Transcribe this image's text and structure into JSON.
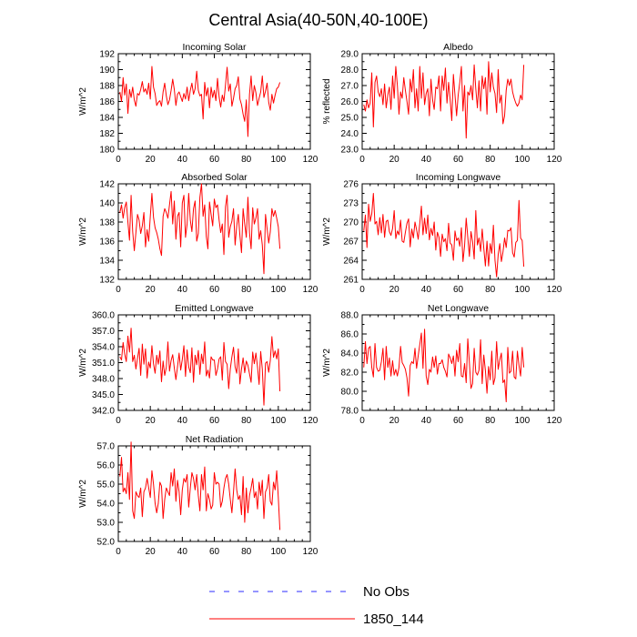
{
  "figure": {
    "title": "Central Asia(40-50N,40-100E)"
  },
  "colors": {
    "series": "#ff0000",
    "obs": "#2b2bff",
    "axis": "#000000"
  },
  "legend": [
    {
      "label": "No Obs",
      "style": "dashed",
      "color": "#2b2bff"
    },
    {
      "label": "1850_144",
      "style": "solid",
      "color": "#ff0000"
    }
  ],
  "chart_data": [
    {
      "type": "line",
      "title": "Incoming Solar",
      "xlabel": "",
      "ylabel": "W/m^2",
      "xlim": [
        0,
        120
      ],
      "ylim": [
        180,
        192
      ],
      "xticks": [
        "0",
        "20",
        "40",
        "60",
        "80",
        "100",
        "120"
      ],
      "yticks": [
        "180",
        "182",
        "184",
        "186",
        "188",
        "190",
        "192"
      ],
      "series": [
        {
          "name": "1850_144",
          "values": [
            187.2,
            186.0,
            189.0,
            186.8,
            188.2,
            184.5,
            187.5,
            186.5,
            187.8,
            186.2,
            185.4,
            187.0,
            186.8,
            187.5,
            188.5,
            187.2,
            187.6,
            186.9,
            188.3,
            186.3,
            190.4,
            187.8,
            187.0,
            185.5,
            185.9,
            186.1,
            185.4,
            187.2,
            188.3,
            186.7,
            185.6,
            186.2,
            187.4,
            188.8,
            187.5,
            185.5,
            186.9,
            187.2,
            186.6,
            186.0,
            187.0,
            186.3,
            187.8,
            186.1,
            187.4,
            188.3,
            186.9,
            187.6,
            189.8,
            187.4,
            186.7,
            186.9,
            183.8,
            188.4,
            186.7,
            187.7,
            185.2,
            187.8,
            186.5,
            187.4,
            186.1,
            188.9,
            186.6,
            185.3,
            186.8,
            186.0,
            188.1,
            190.3,
            187.3,
            188.2,
            185.4,
            186.4,
            187.6,
            188.0,
            189.1,
            186.3,
            185.6,
            184.4,
            183.5,
            186.2,
            181.6,
            186.9,
            189.2,
            186.1,
            188.0,
            187.1,
            185.5,
            186.4,
            187.2,
            189.2,
            186.5,
            187.3,
            188.3,
            185.9,
            184.9,
            186.9,
            185.8,
            186.8,
            187.6,
            187.8,
            188.4
          ]
        }
      ]
    },
    {
      "type": "line",
      "title": "Albedo",
      "xlabel": "",
      "ylabel": "% reflected",
      "xlim": [
        0,
        120
      ],
      "ylim": [
        23,
        29
      ],
      "xticks": [
        "0",
        "20",
        "40",
        "60",
        "80",
        "100",
        "120"
      ],
      "yticks": [
        "23.0",
        "24.0",
        "25.0",
        "26.0",
        "27.0",
        "28.0",
        "29.0"
      ],
      "series": [
        {
          "name": "1850_144",
          "values": [
            25.8,
            25.4,
            26.1,
            25.6,
            25.9,
            27.8,
            24.4,
            27.2,
            27.6,
            26.6,
            26.3,
            26.8,
            25.8,
            27.1,
            25.6,
            26.4,
            26.9,
            25.5,
            27.6,
            26.2,
            28.2,
            27.0,
            25.2,
            26.6,
            26.2,
            27.5,
            26.7,
            26.0,
            25.2,
            27.4,
            26.6,
            28.0,
            25.6,
            26.8,
            25.4,
            28.2,
            26.2,
            27.8,
            25.8,
            26.5,
            26.8,
            25.1,
            27.4,
            26.1,
            25.5,
            26.9,
            26.8,
            27.6,
            25.4,
            27.6,
            26.7,
            28.1,
            25.9,
            27.2,
            26.1,
            24.8,
            27.7,
            26.4,
            25.1,
            26.4,
            27.2,
            28.2,
            25.4,
            27.0,
            23.7,
            26.6,
            26.4,
            27.0,
            26.1,
            28.3,
            26.8,
            25.6,
            27.3,
            25.4,
            27.6,
            26.8,
            27.5,
            25.2,
            28.5,
            26.6,
            27.8,
            26.9,
            26.5,
            25.3,
            28.0,
            25.9,
            26.4,
            24.6,
            25.1,
            26.7,
            27.4,
            27.0,
            27.4,
            26.6,
            26.2,
            25.9,
            25.7,
            25.9,
            26.4,
            26.1,
            28.3
          ]
        }
      ]
    },
    {
      "type": "line",
      "title": "Absorbed Solar",
      "xlabel": "",
      "ylabel": "W/m^2",
      "xlim": [
        0,
        120
      ],
      "ylim": [
        132,
        142
      ],
      "xticks": [
        "0",
        "20",
        "40",
        "60",
        "80",
        "100",
        "120"
      ],
      "yticks": [
        "132",
        "134",
        "136",
        "138",
        "140",
        "142"
      ],
      "series": [
        {
          "name": "1850_144",
          "values": [
            139.0,
            139.8,
            138.4,
            139.5,
            140.1,
            138.0,
            136.1,
            140.8,
            137.0,
            135.0,
            136.9,
            138.8,
            138.2,
            136.8,
            137.6,
            139.0,
            135.4,
            137.2,
            136.0,
            138.6,
            141.0,
            138.5,
            137.4,
            136.9,
            136.2,
            135.2,
            134.5,
            138.6,
            139.4,
            139.0,
            138.4,
            139.8,
            141.2,
            137.8,
            140.2,
            136.2,
            138.6,
            139.0,
            135.4,
            140.0,
            140.8,
            136.4,
            137.8,
            141.0,
            138.2,
            137.0,
            139.4,
            140.2,
            136.0,
            136.8,
            140.6,
            142.0,
            138.6,
            139.8,
            136.5,
            135.2,
            140.1,
            138.8,
            137.6,
            140.4,
            139.5,
            139.8,
            138.2,
            136.9,
            137.8,
            134.6,
            139.6,
            140.8,
            136.4,
            137.5,
            138.1,
            139.4,
            135.6,
            137.6,
            138.8,
            136.6,
            134.8,
            139.4,
            137.8,
            136.4,
            140.6,
            136.9,
            135.2,
            139.5,
            137.8,
            138.4,
            139.4,
            136.2,
            137.1,
            135.6,
            132.6,
            138.8,
            137.3,
            135.8,
            137.0,
            139.4,
            138.6,
            139.2,
            138.4,
            137.5,
            135.2
          ]
        }
      ]
    },
    {
      "type": "line",
      "title": "Incoming Longwave",
      "xlabel": "",
      "ylabel": "W/m^2",
      "xlim": [
        0,
        120
      ],
      "ylim": [
        261,
        276
      ],
      "xticks": [
        "0",
        "20",
        "40",
        "60",
        "80",
        "100",
        "120"
      ],
      "yticks": [
        "261",
        "264",
        "267",
        "270",
        "273",
        "276"
      ],
      "series": [
        {
          "name": "1850_144",
          "values": [
            268.6,
            271.1,
            266.0,
            272.8,
            270.1,
            271.3,
            274.5,
            269.7,
            270.1,
            268.0,
            270.7,
            268.3,
            271.2,
            267.6,
            270.1,
            270.3,
            268.5,
            267.9,
            269.0,
            271.8,
            267.4,
            268.6,
            268.0,
            270.3,
            267.0,
            266.8,
            268.4,
            269.8,
            270.5,
            266.1,
            268.9,
            267.5,
            270.0,
            268.8,
            267.3,
            269.8,
            272.5,
            268.0,
            270.6,
            268.2,
            271.1,
            267.2,
            269.0,
            267.9,
            270.0,
            265.6,
            268.4,
            267.6,
            264.6,
            268.1,
            266.9,
            267.4,
            265.5,
            269.8,
            266.7,
            266.4,
            264.0,
            268.6,
            267.1,
            267.5,
            266.2,
            269.1,
            263.8,
            266.3,
            270.6,
            267.6,
            264.6,
            268.5,
            266.9,
            264.2,
            271.8,
            266.4,
            267.5,
            265.4,
            268.9,
            265.9,
            263.1,
            267.0,
            263.1,
            266.6,
            265.1,
            269.5,
            264.0,
            261.4,
            264.9,
            266.6,
            263.8,
            265.3,
            267.5,
            266.0,
            268.7,
            268.6,
            269.1,
            265.2,
            264.5,
            266.8,
            267.1,
            273.4,
            267.5,
            267.1,
            263.0
          ]
        }
      ]
    },
    {
      "type": "line",
      "title": "Emitted Longwave",
      "xlabel": "",
      "ylabel": "W/m^2",
      "xlim": [
        0,
        120
      ],
      "ylim": [
        342,
        360
      ],
      "xticks": [
        "0",
        "20",
        "40",
        "60",
        "80",
        "100",
        "120"
      ],
      "yticks": [
        "342.0",
        "345.0",
        "348.0",
        "351.0",
        "354.0",
        "357.0",
        "360.0"
      ],
      "series": [
        {
          "name": "1850_144",
          "values": [
            352.1,
            351.5,
            354.8,
            352.6,
            351.2,
            356.0,
            353.0,
            357.5,
            351.2,
            352.4,
            349.8,
            351.8,
            353.7,
            348.6,
            354.5,
            350.7,
            353.6,
            348.1,
            351.1,
            350.0,
            354.2,
            350.8,
            349.0,
            352.4,
            350.7,
            353.2,
            347.4,
            351.3,
            348.6,
            350.1,
            354.9,
            349.4,
            351.4,
            352.5,
            350.0,
            347.8,
            350.2,
            352.8,
            349.6,
            351.6,
            354.2,
            348.4,
            353.4,
            350.2,
            349.1,
            353.8,
            347.3,
            352.4,
            350.6,
            353.3,
            348.8,
            352.6,
            350.8,
            354.9,
            348.5,
            349.6,
            348.1,
            352.1,
            351.5,
            351.5,
            348.6,
            349.8,
            351.7,
            352.1,
            347.7,
            354.8,
            351.2,
            350.7,
            346.1,
            349.8,
            352.1,
            353.9,
            350.2,
            349.0,
            353.6,
            347.0,
            349.8,
            351.9,
            349.1,
            351.3,
            350.5,
            348.9,
            347.3,
            353.0,
            350.8,
            352.8,
            350.2,
            346.9,
            353.1,
            349.8,
            343.0,
            350.9,
            351.2,
            349.2,
            351.4,
            355.9,
            352.0,
            353.2,
            351.7,
            353.6,
            345.6
          ]
        }
      ]
    },
    {
      "type": "line",
      "title": "Net Longwave",
      "xlabel": "",
      "ylabel": "W/m^2",
      "xlim": [
        0,
        120
      ],
      "ylim": [
        78,
        88
      ],
      "xticks": [
        "0",
        "20",
        "40",
        "60",
        "80",
        "100",
        "120"
      ],
      "yticks": [
        "78.0",
        "80.0",
        "82.0",
        "84.0",
        "86.0",
        "88.0"
      ],
      "series": [
        {
          "name": "1850_144",
          "values": [
            82.5,
            85.2,
            82.9,
            84.5,
            84.7,
            82.5,
            81.5,
            85.0,
            82.5,
            82.1,
            82.2,
            83.1,
            84.5,
            81.2,
            84.7,
            82.5,
            83.5,
            81.6,
            83.2,
            81.7,
            82.3,
            81.6,
            82.5,
            84.7,
            83.0,
            82.7,
            82.3,
            81.4,
            79.5,
            82.7,
            83.1,
            82.9,
            84.5,
            82.4,
            83.7,
            84.9,
            86.1,
            82.4,
            86.5,
            81.6,
            80.7,
            82.3,
            82.0,
            83.6,
            82.5,
            83.7,
            81.8,
            82.9,
            82.9,
            83.3,
            82.5,
            82.1,
            81.5,
            83.9,
            83.5,
            82.9,
            83.7,
            81.6,
            84.3,
            83.1,
            85.0,
            81.6,
            81.5,
            82.9,
            80.9,
            85.5,
            83.0,
            80.3,
            80.8,
            84.5,
            82.0,
            81.7,
            82.2,
            85.4,
            80.8,
            83.8,
            82.2,
            79.8,
            82.6,
            81.2,
            84.2,
            80.7,
            81.4,
            85.2,
            82.3,
            83.3,
            84.0,
            80.9,
            81.2,
            78.9,
            84.6,
            81.9,
            82.1,
            84.2,
            81.5,
            81.3,
            84.2,
            82.7,
            81.6,
            84.6,
            82.5
          ]
        }
      ]
    },
    {
      "type": "line",
      "title": "Net Radiation",
      "xlabel": "",
      "ylabel": "W/m^2",
      "xlim": [
        0,
        120
      ],
      "ylim": [
        52,
        57
      ],
      "xticks": [
        "0",
        "20",
        "40",
        "60",
        "80",
        "100",
        "120"
      ],
      "yticks": [
        "52.0",
        "53.0",
        "54.0",
        "55.0",
        "56.0",
        "57.0"
      ],
      "series": [
        {
          "name": "1850_144",
          "values": [
            55.4,
            56.4,
            54.6,
            54.8,
            54.5,
            55.6,
            54.2,
            57.2,
            53.6,
            53.2,
            54.6,
            54.4,
            54.3,
            54.8,
            53.3,
            54.6,
            54.8,
            55.3,
            54.8,
            54.3,
            55.7,
            55.0,
            54.0,
            53.5,
            54.0,
            55.1,
            54.9,
            53.2,
            54.2,
            54.8,
            54.6,
            54.4,
            55.6,
            54.9,
            55.8,
            54.1,
            55.2,
            54.6,
            53.4,
            54.7,
            55.3,
            55.1,
            55.5,
            53.8,
            54.8,
            55.6,
            55.3,
            54.7,
            55.5,
            54.4,
            53.6,
            55.5,
            54.7,
            55.9,
            53.6,
            54.5,
            54.2,
            53.7,
            53.9,
            55.6,
            55.0,
            55.1,
            55.0,
            53.8,
            54.1,
            54.8,
            55.3,
            55.5,
            55.0,
            54.2,
            53.5,
            54.6,
            55.8,
            54.7,
            54.2,
            54.4,
            53.4,
            55.4,
            53.0,
            54.8,
            53.5,
            54.4,
            54.8,
            55.3,
            54.3,
            54.6,
            53.7,
            55.1,
            54.4,
            55.2,
            53.2,
            54.6,
            54.8,
            55.5,
            54.1,
            53.9,
            55.1,
            54.7,
            55.7,
            54.3,
            52.6
          ]
        }
      ]
    }
  ]
}
